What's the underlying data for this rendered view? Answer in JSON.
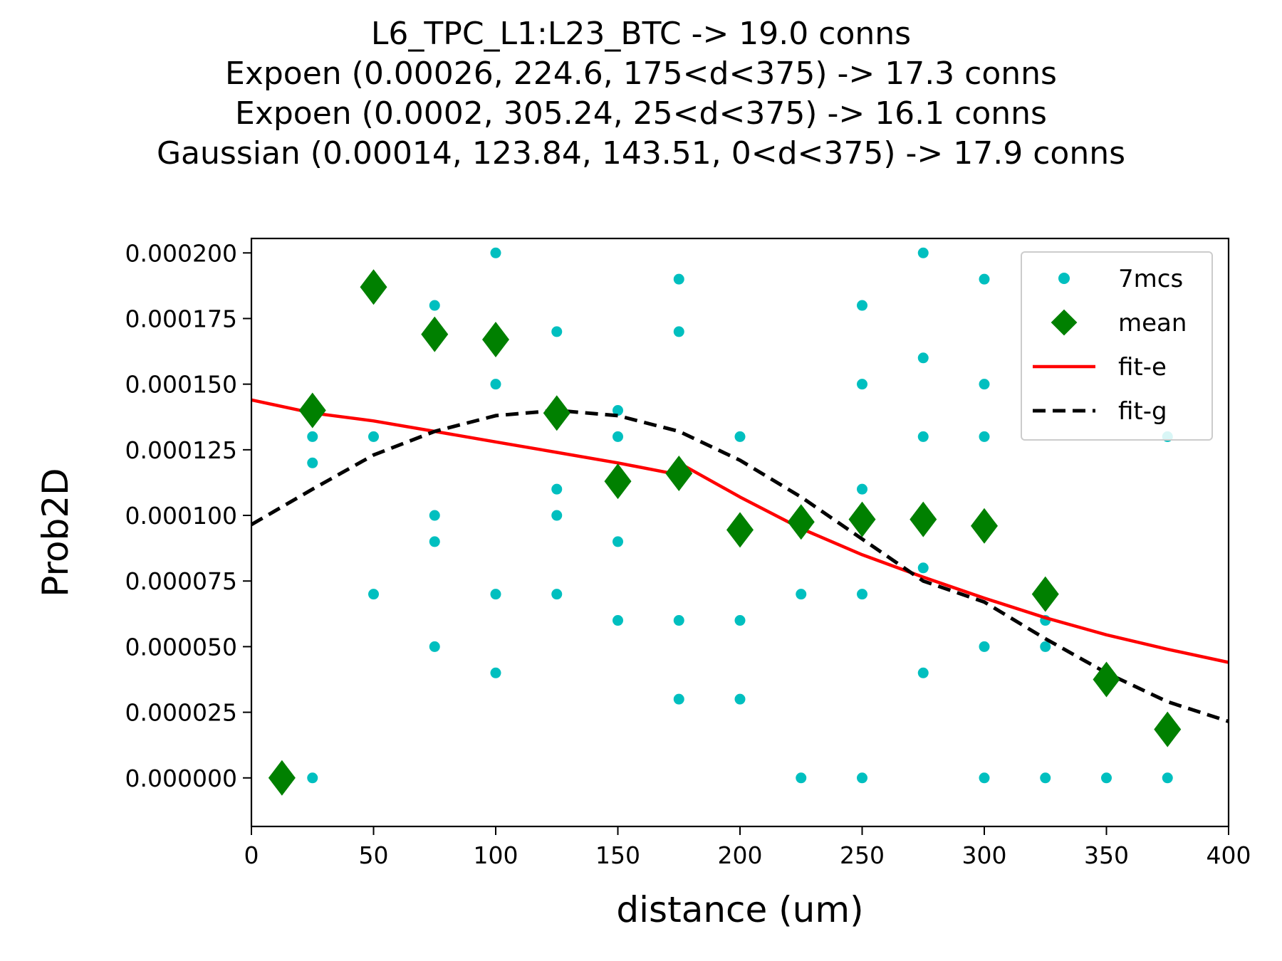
{
  "chart_data": {
    "type": "scatter",
    "title_lines": [
      "L6_TPC_L1:L23_BTC -> 19.0 conns",
      "Expoen (0.00026, 224.6, 175<d<375) -> 17.3 conns",
      "Expoen (0.0002, 305.24, 25<d<375) -> 16.1 conns",
      "Gaussian (0.00014, 123.84, 143.51, 0<d<375) -> 17.9 conns"
    ],
    "xlabel": "distance (um)",
    "ylabel": "Prob2D",
    "xlim": [
      0,
      400
    ],
    "ylim": [
      -1.85e-05,
      0.0002055
    ],
    "xticks": [
      0,
      50,
      100,
      150,
      200,
      250,
      300,
      350,
      400
    ],
    "xtick_labels": [
      "0",
      "50",
      "100",
      "150",
      "200",
      "250",
      "300",
      "350",
      "400"
    ],
    "yticks": [
      0,
      2.5e-05,
      5e-05,
      7.5e-05,
      0.0001,
      0.000125,
      0.00015,
      0.000175,
      0.0002
    ],
    "ytick_labels": [
      "0.000000",
      "0.000025",
      "0.000050",
      "0.000075",
      "0.000100",
      "0.000125",
      "0.000150",
      "0.000175",
      "0.000200"
    ],
    "legend": {
      "position": "top-right",
      "entries": [
        "7mcs",
        "mean",
        "fit-e",
        "fit-g"
      ]
    },
    "colors": {
      "samples": "#00bfbf",
      "mean": "#008000",
      "fit_e": "#ff0000",
      "fit_g": "#000000"
    },
    "series": [
      {
        "name": "7mcs",
        "kind": "points",
        "x": [
          25,
          25,
          25,
          50,
          50,
          75,
          75,
          75,
          75,
          100,
          100,
          100,
          100,
          125,
          125,
          125,
          125,
          150,
          150,
          150,
          150,
          175,
          175,
          175,
          175,
          200,
          200,
          200,
          225,
          225,
          250,
          250,
          250,
          250,
          250,
          275,
          275,
          275,
          275,
          275,
          300,
          300,
          300,
          300,
          300,
          325,
          325,
          325,
          350,
          375,
          375
        ],
        "y": [
          0.00013,
          0.00012,
          0,
          0.00013,
          7e-05,
          0.00018,
          0.0001,
          9e-05,
          5e-05,
          0.0002,
          0.00015,
          7e-05,
          4e-05,
          0.00017,
          0.00011,
          0.0001,
          7e-05,
          0.00014,
          0.00013,
          9e-05,
          6e-05,
          0.00019,
          0.00017,
          6e-05,
          3e-05,
          0.00013,
          6e-05,
          3e-05,
          7e-05,
          0,
          0.00018,
          0.00015,
          0.00011,
          7e-05,
          0,
          0.0002,
          0.00016,
          0.00013,
          8e-05,
          4e-05,
          0.00019,
          0.00015,
          0.00013,
          5e-05,
          0,
          6e-05,
          5e-05,
          0,
          0,
          0.00013,
          0
        ]
      },
      {
        "name": "mean",
        "kind": "markers",
        "x": [
          12.5,
          25,
          50,
          75,
          100,
          125,
          150,
          175,
          200,
          225,
          250,
          275,
          300,
          325,
          350,
          375
        ],
        "y": [
          0,
          0.00014,
          0.000187,
          0.000169,
          0.000167,
          0.000139,
          0.000113,
          0.000116,
          9.45e-05,
          9.75e-05,
          9.85e-05,
          9.85e-05,
          9.6e-05,
          7e-05,
          3.75e-05,
          1.85e-05
        ]
      },
      {
        "name": "fit-e",
        "kind": "line",
        "segments": [
          {
            "x": [
              0,
              25,
              50,
              75,
              100,
              125,
              150,
              175
            ],
            "y": [
              0.000144,
              0.000139,
              0.000136,
              0.000132,
              0.000128,
              0.000124,
              0.00012,
              0.0001155
            ]
          },
          {
            "x": [
              175,
              200,
              225,
              250,
              275,
              300,
              325,
              350,
              375,
              400
            ],
            "y": [
              0.00012,
              0.000107,
              9.5e-05,
              8.5e-05,
              7.65e-05,
              6.85e-05,
              6.1e-05,
              5.45e-05,
              4.9e-05,
              4.4e-05
            ]
          }
        ]
      },
      {
        "name": "fit-g",
        "kind": "dashed-line",
        "x": [
          0,
          25,
          50,
          75,
          100,
          125,
          150,
          175,
          200,
          225,
          250,
          275,
          300,
          325,
          350,
          375,
          400
        ],
        "y": [
          9.65e-05,
          0.00011,
          0.000123,
          0.000132,
          0.000138,
          0.00014,
          0.000138,
          0.000132,
          0.000121,
          0.000107,
          9.1e-05,
          7.5e-05,
          6.7e-05,
          5.3e-05,
          4e-05,
          2.9e-05,
          2.15e-05
        ]
      }
    ]
  }
}
